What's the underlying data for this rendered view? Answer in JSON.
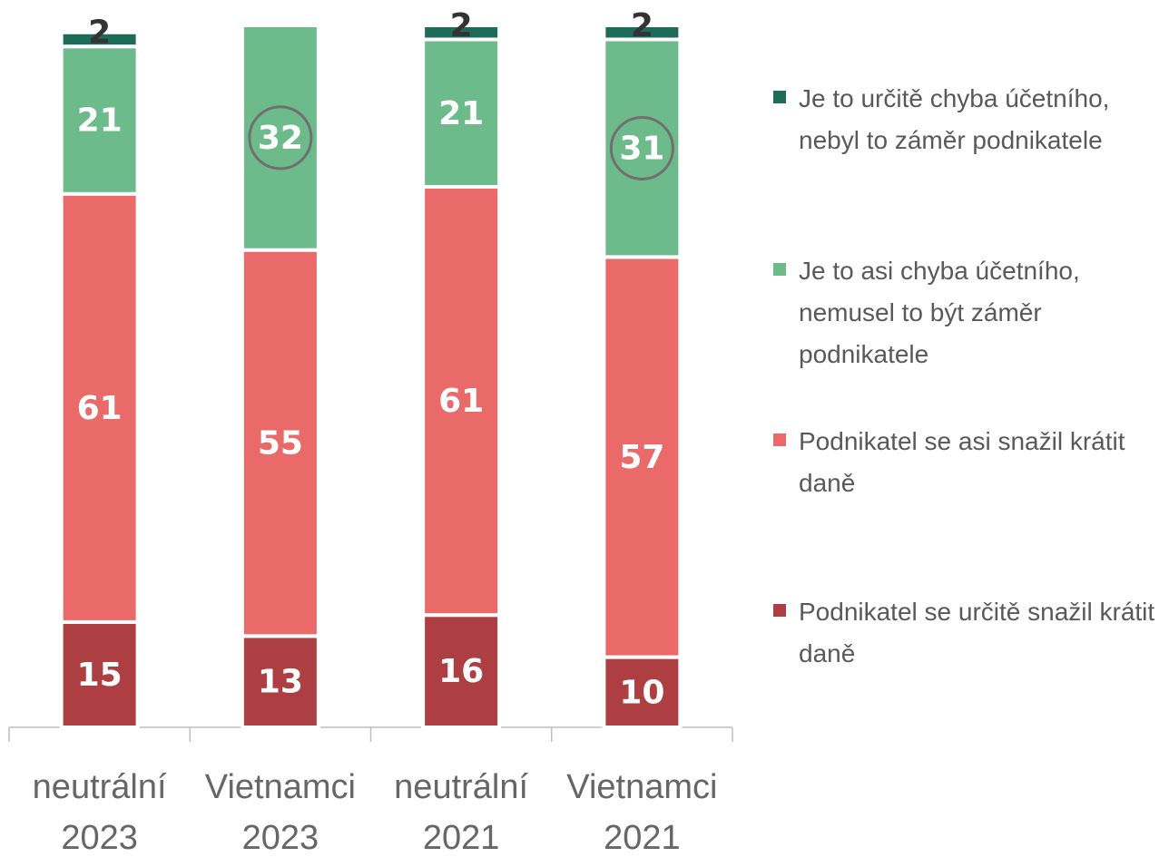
{
  "chart_data": {
    "type": "stacked_bar",
    "categories": [
      "neutrální 2023",
      "Vietnamci 2023",
      "neutrální 2021",
      "Vietnamci 2021"
    ],
    "ylim": [
      0,
      100
    ],
    "legend": "right",
    "series": [
      {
        "name": "Podnikatel se určitě snažil krátit daně",
        "color": "#ad3f43",
        "values": [
          15,
          13,
          16,
          10
        ]
      },
      {
        "name": "Podnikatel se asi snažil krátit daně",
        "color": "#e96a68",
        "values": [
          61,
          55,
          61,
          57
        ]
      },
      {
        "name": "Je to asi chyba účetního, nemusel to být záměr podnikatele",
        "color": "#6dbb8a",
        "values": [
          21,
          32,
          21,
          31
        ],
        "circled": [
          false,
          true,
          false,
          true
        ]
      },
      {
        "name": "Je to určitě chyba účetního, nebyl to záměr podnikatele",
        "color": "#1f6b5a",
        "values": [
          2,
          null,
          2,
          2
        ]
      }
    ]
  }
}
